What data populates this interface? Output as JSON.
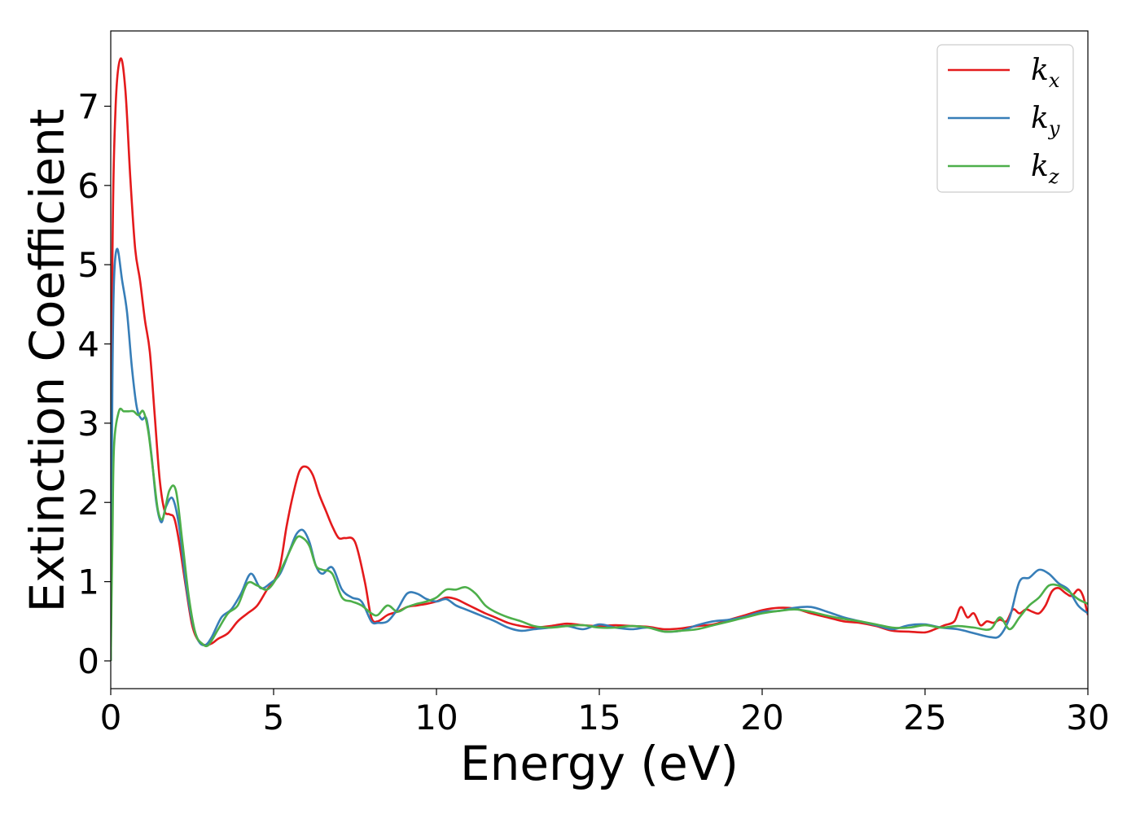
{
  "chart_data": {
    "type": "line",
    "xlabel": "Energy (eV)",
    "ylabel": "Extinction Coefficient",
    "xlim": [
      0,
      30
    ],
    "ylim": [
      -0.35,
      7.95
    ],
    "xticks": [
      0,
      5,
      10,
      15,
      20,
      25,
      30
    ],
    "yticks": [
      0,
      1,
      2,
      3,
      4,
      5,
      6,
      7
    ],
    "grid": false,
    "legend_position": "top-right",
    "series": [
      {
        "name": "k_x",
        "label_base": "k",
        "label_sub": "x",
        "color": "#e41a1c",
        "x": [
          0,
          0.05,
          0.15,
          0.3,
          0.45,
          0.6,
          0.75,
          0.9,
          1.05,
          1.2,
          1.35,
          1.5,
          1.65,
          1.8,
          1.95,
          2.1,
          2.3,
          2.5,
          2.7,
          2.9,
          3.1,
          3.3,
          3.6,
          3.9,
          4.2,
          4.5,
          4.8,
          5.0,
          5.2,
          5.4,
          5.6,
          5.8,
          6.0,
          6.2,
          6.4,
          6.6,
          6.8,
          7.0,
          7.2,
          7.5,
          7.8,
          8.0,
          8.2,
          8.5,
          8.8,
          9.1,
          9.4,
          9.7,
          10.0,
          10.3,
          10.6,
          10.9,
          11.2,
          11.5,
          11.8,
          12.2,
          12.6,
          13.0,
          13.5,
          14.0,
          14.5,
          15.0,
          15.5,
          16.0,
          16.5,
          17.0,
          17.5,
          18.0,
          18.5,
          19.0,
          19.5,
          20.0,
          20.5,
          21.0,
          21.5,
          22.0,
          22.5,
          23.0,
          23.5,
          24.0,
          24.5,
          25.0,
          25.3,
          25.6,
          25.9,
          26.1,
          26.3,
          26.5,
          26.7,
          26.9,
          27.1,
          27.3,
          27.5,
          27.7,
          27.9,
          28.1,
          28.3,
          28.5,
          28.7,
          28.9,
          29.1,
          29.3,
          29.5,
          29.7,
          29.85,
          30.0
        ],
        "y": [
          0.0,
          5.0,
          7.0,
          7.6,
          7.2,
          6.1,
          5.2,
          4.8,
          4.3,
          3.9,
          3.1,
          2.3,
          1.9,
          1.85,
          1.8,
          1.5,
          0.95,
          0.45,
          0.25,
          0.2,
          0.22,
          0.28,
          0.35,
          0.5,
          0.6,
          0.7,
          0.9,
          1.0,
          1.2,
          1.7,
          2.1,
          2.4,
          2.45,
          2.35,
          2.1,
          1.9,
          1.7,
          1.55,
          1.55,
          1.5,
          1.0,
          0.55,
          0.5,
          0.58,
          0.62,
          0.68,
          0.7,
          0.72,
          0.75,
          0.8,
          0.78,
          0.72,
          0.66,
          0.6,
          0.55,
          0.48,
          0.44,
          0.42,
          0.44,
          0.47,
          0.45,
          0.44,
          0.45,
          0.44,
          0.43,
          0.4,
          0.41,
          0.44,
          0.46,
          0.52,
          0.58,
          0.64,
          0.67,
          0.66,
          0.6,
          0.55,
          0.5,
          0.48,
          0.44,
          0.38,
          0.37,
          0.36,
          0.4,
          0.45,
          0.5,
          0.68,
          0.55,
          0.6,
          0.45,
          0.5,
          0.48,
          0.52,
          0.5,
          0.65,
          0.6,
          0.65,
          0.62,
          0.6,
          0.7,
          0.88,
          0.92,
          0.86,
          0.82,
          0.9,
          0.82,
          0.58
        ]
      },
      {
        "name": "k_y",
        "label_base": "k",
        "label_sub": "y",
        "color": "#377eb8",
        "x": [
          0,
          0.05,
          0.1,
          0.2,
          0.35,
          0.5,
          0.65,
          0.8,
          0.95,
          1.1,
          1.25,
          1.4,
          1.55,
          1.7,
          1.9,
          2.1,
          2.3,
          2.5,
          2.7,
          2.9,
          3.1,
          3.4,
          3.7,
          4.0,
          4.3,
          4.6,
          4.9,
          5.2,
          5.5,
          5.7,
          5.9,
          6.1,
          6.3,
          6.5,
          6.8,
          7.1,
          7.4,
          7.7,
          8.0,
          8.2,
          8.5,
          8.8,
          9.1,
          9.4,
          9.7,
          10.0,
          10.3,
          10.6,
          10.9,
          11.2,
          11.5,
          11.8,
          12.2,
          12.6,
          13.0,
          13.5,
          14.0,
          14.5,
          15.0,
          15.5,
          16.0,
          16.5,
          17.0,
          17.5,
          18.0,
          18.5,
          19.0,
          19.5,
          20.0,
          20.5,
          21.0,
          21.5,
          22.0,
          22.5,
          23.0,
          23.5,
          24.0,
          24.5,
          25.0,
          25.5,
          26.0,
          26.5,
          27.0,
          27.3,
          27.6,
          27.9,
          28.2,
          28.5,
          28.8,
          29.1,
          29.4,
          29.7,
          30.0
        ],
        "y": [
          0.0,
          3.5,
          4.8,
          5.2,
          4.8,
          4.4,
          3.7,
          3.2,
          3.05,
          3.05,
          2.6,
          2.0,
          1.75,
          1.95,
          2.05,
          1.7,
          1.0,
          0.5,
          0.25,
          0.2,
          0.3,
          0.55,
          0.65,
          0.85,
          1.1,
          0.92,
          0.98,
          1.1,
          1.4,
          1.6,
          1.65,
          1.5,
          1.2,
          1.1,
          1.18,
          0.9,
          0.8,
          0.75,
          0.5,
          0.48,
          0.5,
          0.65,
          0.85,
          0.85,
          0.78,
          0.75,
          0.78,
          0.7,
          0.65,
          0.6,
          0.55,
          0.5,
          0.42,
          0.38,
          0.4,
          0.42,
          0.44,
          0.4,
          0.46,
          0.42,
          0.4,
          0.42,
          0.37,
          0.38,
          0.45,
          0.5,
          0.52,
          0.56,
          0.62,
          0.63,
          0.67,
          0.68,
          0.62,
          0.55,
          0.5,
          0.45,
          0.4,
          0.45,
          0.46,
          0.42,
          0.4,
          0.35,
          0.3,
          0.32,
          0.55,
          1.0,
          1.05,
          1.15,
          1.1,
          0.98,
          0.9,
          0.7,
          0.6
        ]
      },
      {
        "name": "k_z",
        "label_base": "k",
        "label_sub": "z",
        "color": "#4daf4a",
        "x": [
          0,
          0.05,
          0.1,
          0.25,
          0.4,
          0.55,
          0.7,
          0.85,
          1.0,
          1.15,
          1.3,
          1.45,
          1.6,
          1.8,
          2.0,
          2.2,
          2.4,
          2.6,
          2.8,
          3.0,
          3.3,
          3.6,
          3.9,
          4.2,
          4.5,
          4.8,
          5.1,
          5.4,
          5.7,
          5.9,
          6.1,
          6.3,
          6.5,
          6.8,
          7.1,
          7.4,
          7.7,
          8.0,
          8.2,
          8.5,
          8.8,
          9.1,
          9.4,
          9.7,
          10.0,
          10.3,
          10.6,
          10.9,
          11.2,
          11.5,
          11.8,
          12.2,
          12.6,
          13.0,
          13.5,
          14.0,
          14.5,
          15.0,
          15.5,
          16.0,
          16.5,
          17.0,
          17.5,
          18.0,
          18.5,
          19.0,
          19.5,
          20.0,
          20.5,
          21.0,
          21.5,
          22.0,
          22.5,
          23.0,
          23.5,
          24.0,
          24.5,
          25.0,
          25.5,
          26.0,
          26.5,
          27.0,
          27.3,
          27.6,
          27.9,
          28.2,
          28.5,
          28.8,
          29.1,
          29.4,
          29.7,
          30.0
        ],
        "y": [
          0.0,
          1.5,
          2.7,
          3.15,
          3.15,
          3.15,
          3.15,
          3.1,
          3.15,
          2.9,
          2.4,
          1.9,
          1.8,
          2.15,
          2.15,
          1.5,
          0.8,
          0.35,
          0.22,
          0.2,
          0.4,
          0.6,
          0.7,
          0.98,
          0.95,
          0.9,
          1.05,
          1.3,
          1.55,
          1.55,
          1.45,
          1.2,
          1.15,
          1.1,
          0.8,
          0.75,
          0.7,
          0.6,
          0.58,
          0.7,
          0.62,
          0.68,
          0.72,
          0.75,
          0.8,
          0.9,
          0.9,
          0.93,
          0.85,
          0.7,
          0.62,
          0.55,
          0.5,
          0.44,
          0.42,
          0.44,
          0.45,
          0.42,
          0.42,
          0.44,
          0.42,
          0.37,
          0.38,
          0.4,
          0.45,
          0.5,
          0.55,
          0.6,
          0.63,
          0.65,
          0.62,
          0.57,
          0.53,
          0.5,
          0.46,
          0.42,
          0.42,
          0.45,
          0.42,
          0.44,
          0.42,
          0.4,
          0.55,
          0.4,
          0.55,
          0.7,
          0.8,
          0.95,
          0.95,
          0.88,
          0.78,
          0.72
        ]
      }
    ]
  }
}
